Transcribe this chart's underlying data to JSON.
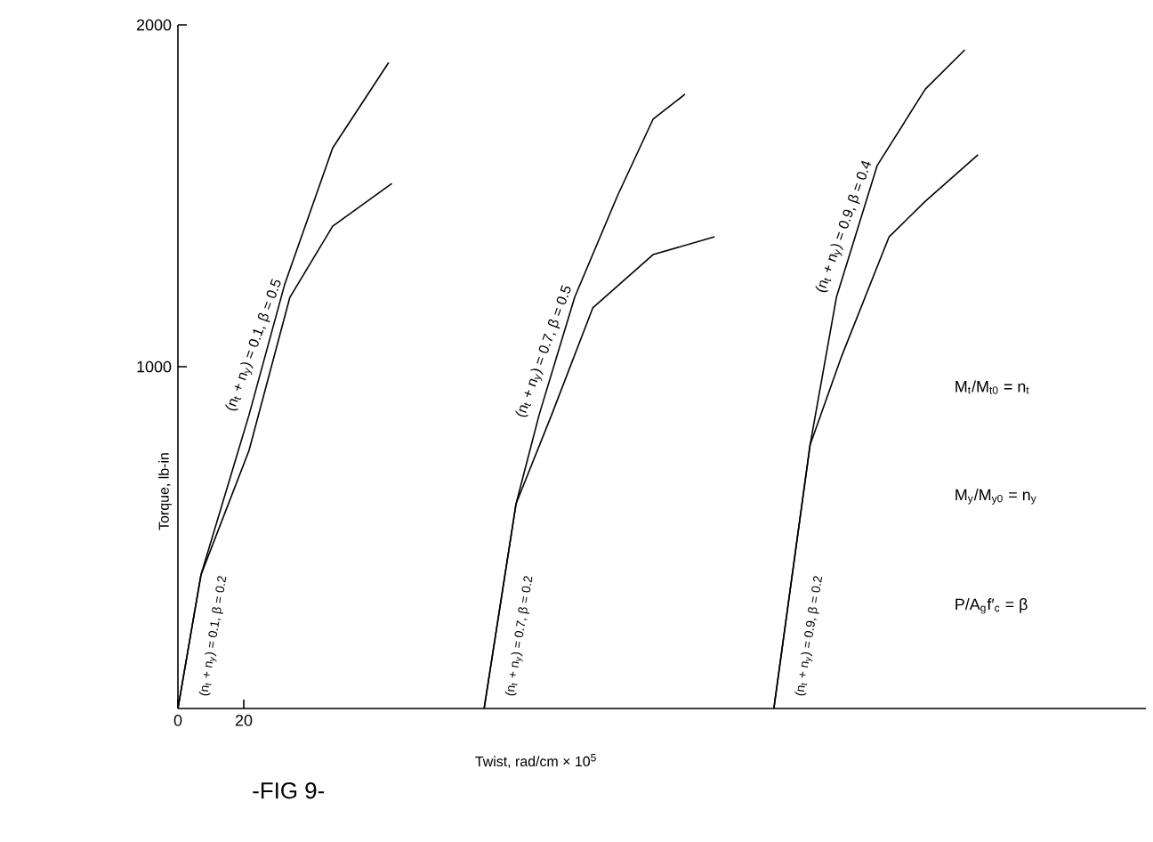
{
  "chart_data": {
    "type": "line",
    "xlabel": "Twist, rad/cm × 10$^{5}$",
    "ylabel": "Torque, lb-in",
    "annotations": [
      "-FIG 9-",
      "M$_{t}$/M$_{t0}$ = n$_{t}$",
      "M$_{y}$/M$_{y0}$ = n$_{y}$",
      "P/A$_{g}$f′$_{c}$ = β"
    ],
    "xlim": [
      0,
      294
    ],
    "ylim": [
      0,
      2000
    ],
    "xticks": [
      0,
      20
    ],
    "yticks": [
      1000,
      2000
    ],
    "grid": false,
    "legend": false,
    "marker": "none",
    "line_style": "solid",
    "series": [
      {
        "name": "(n$_{t}$ + n$_{y}$) = 0.1, β = 0.5",
        "color": "#000000",
        "x": [
          0,
          7,
          21.6,
          32.4,
          47,
          64
        ],
        "values": [
          0,
          391,
          859,
          1240,
          1640,
          1890
        ]
      },
      {
        "name": "(n$_{t}$ + n$_{y}$) = 0.1, β = 0.2",
        "color": "#000000",
        "x": [
          0,
          7,
          21.6,
          34,
          47,
          65
        ],
        "values": [
          0,
          391,
          755,
          1203,
          1411,
          1536
        ]
      },
      {
        "name": "(n$_{t}$ + n$_{y}$) = 0.7, β = 0.5",
        "color": "#000000",
        "x": [
          93,
          102.7,
          109.7,
          120.5,
          133.5,
          144.3,
          154
        ],
        "values": [
          0,
          599,
          859,
          1203,
          1500,
          1724,
          1797
        ]
      },
      {
        "name": "(n$_{t}$ + n$_{y}$) = 0.7, β = 0.2",
        "color": "#000000",
        "x": [
          93,
          102.7,
          113.5,
          126,
          144.3,
          163
        ],
        "values": [
          0,
          599,
          859,
          1172,
          1328,
          1380
        ]
      },
      {
        "name": "(n$_{t}$ + n$_{y}$) = 0.9, β = 0.4",
        "color": "#000000",
        "x": [
          181,
          192,
          200,
          212.4,
          227,
          239
        ],
        "values": [
          0,
          771,
          1203,
          1589,
          1812,
          1927
        ]
      },
      {
        "name": "(n$_{t}$ + n$_{y}$) = 0.9, β = 0.2",
        "color": "#000000",
        "x": [
          181,
          192,
          201.6,
          216,
          227,
          243
        ],
        "values": [
          0,
          771,
          1031,
          1380,
          1484,
          1620
        ]
      }
    ]
  }
}
